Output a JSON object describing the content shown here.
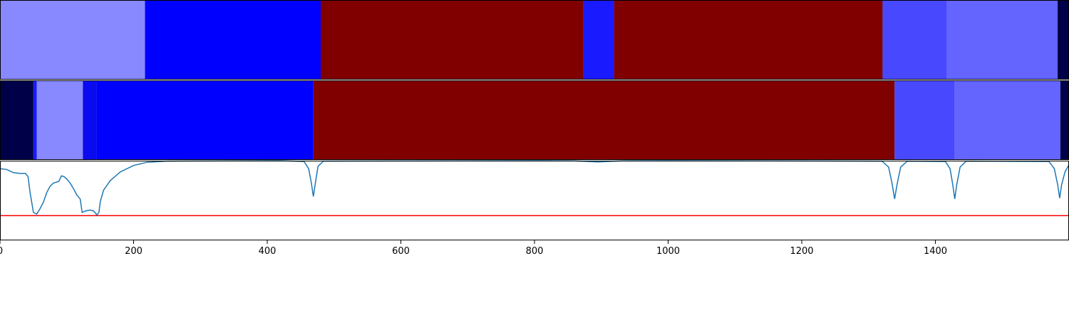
{
  "chart_data": {
    "type": "heatmap",
    "xlim": [
      0,
      1600
    ],
    "x_ticks": [
      0,
      200,
      400,
      600,
      800,
      1000,
      1200,
      1400
    ],
    "x_tick_labels": [
      "0",
      "200",
      "400",
      "600",
      "800",
      "1000",
      "1200",
      "1400"
    ],
    "tracks": [
      {
        "segments": [
          {
            "start": 0,
            "end": 217,
            "color": "#8888ff"
          },
          {
            "start": 217,
            "end": 480,
            "color": "#0000ff"
          },
          {
            "start": 480,
            "end": 873,
            "color": "#800000"
          },
          {
            "start": 873,
            "end": 919,
            "color": "#1a1aff"
          },
          {
            "start": 919,
            "end": 1321,
            "color": "#800000"
          },
          {
            "start": 1321,
            "end": 1417,
            "color": "#4848ff"
          },
          {
            "start": 1417,
            "end": 1583,
            "color": "#6464ff"
          },
          {
            "start": 1583,
            "end": 1600,
            "color": "#000048"
          }
        ]
      },
      {
        "segments": [
          {
            "start": 0,
            "end": 50,
            "color": "#000048"
          },
          {
            "start": 50,
            "end": 55,
            "color": "#1a1aff"
          },
          {
            "start": 55,
            "end": 124,
            "color": "#8888ff"
          },
          {
            "start": 124,
            "end": 145,
            "color": "#0a0aee"
          },
          {
            "start": 145,
            "end": 469,
            "color": "#0000ff"
          },
          {
            "start": 469,
            "end": 1339,
            "color": "#800000"
          },
          {
            "start": 1339,
            "end": 1429,
            "color": "#4848ff"
          },
          {
            "start": 1429,
            "end": 1587,
            "color": "#6464ff"
          },
          {
            "start": 1587,
            "end": 1600,
            "color": "#000048"
          }
        ]
      }
    ],
    "line": {
      "color": "#1f77b4",
      "ylim": [
        0,
        1
      ],
      "points": [
        [
          0,
          0.9
        ],
        [
          10,
          0.89
        ],
        [
          20,
          0.85
        ],
        [
          30,
          0.84
        ],
        [
          38,
          0.84
        ],
        [
          42,
          0.8
        ],
        [
          45,
          0.6
        ],
        [
          50,
          0.35
        ],
        [
          55,
          0.33
        ],
        [
          60,
          0.4
        ],
        [
          65,
          0.48
        ],
        [
          70,
          0.6
        ],
        [
          75,
          0.68
        ],
        [
          80,
          0.72
        ],
        [
          88,
          0.74
        ],
        [
          92,
          0.81
        ],
        [
          96,
          0.8
        ],
        [
          100,
          0.77
        ],
        [
          105,
          0.72
        ],
        [
          110,
          0.65
        ],
        [
          115,
          0.57
        ],
        [
          120,
          0.52
        ],
        [
          123,
          0.35
        ],
        [
          128,
          0.37
        ],
        [
          135,
          0.38
        ],
        [
          140,
          0.37
        ],
        [
          145,
          0.32
        ],
        [
          148,
          0.35
        ],
        [
          150,
          0.48
        ],
        [
          155,
          0.63
        ],
        [
          165,
          0.75
        ],
        [
          180,
          0.86
        ],
        [
          200,
          0.94
        ],
        [
          220,
          0.98
        ],
        [
          250,
          0.995
        ],
        [
          420,
          1.0
        ],
        [
          455,
          0.99
        ],
        [
          462,
          0.9
        ],
        [
          466,
          0.72
        ],
        [
          469,
          0.55
        ],
        [
          472,
          0.72
        ],
        [
          476,
          0.93
        ],
        [
          484,
          0.995
        ],
        [
          800,
          1.0
        ],
        [
          860,
          0.998
        ],
        [
          895,
          0.985
        ],
        [
          930,
          0.998
        ],
        [
          1000,
          1.0
        ],
        [
          1320,
          0.995
        ],
        [
          1330,
          0.92
        ],
        [
          1335,
          0.72
        ],
        [
          1339,
          0.52
        ],
        [
          1343,
          0.72
        ],
        [
          1348,
          0.92
        ],
        [
          1358,
          0.995
        ],
        [
          1415,
          0.99
        ],
        [
          1422,
          0.9
        ],
        [
          1426,
          0.7
        ],
        [
          1429,
          0.52
        ],
        [
          1432,
          0.7
        ],
        [
          1437,
          0.92
        ],
        [
          1446,
          0.995
        ],
        [
          1570,
          0.99
        ],
        [
          1578,
          0.9
        ],
        [
          1583,
          0.7
        ],
        [
          1586,
          0.53
        ],
        [
          1589,
          0.7
        ],
        [
          1594,
          0.86
        ],
        [
          1600,
          0.95
        ]
      ]
    },
    "threshold": {
      "value": 0.31,
      "color": "#ff0000"
    }
  }
}
